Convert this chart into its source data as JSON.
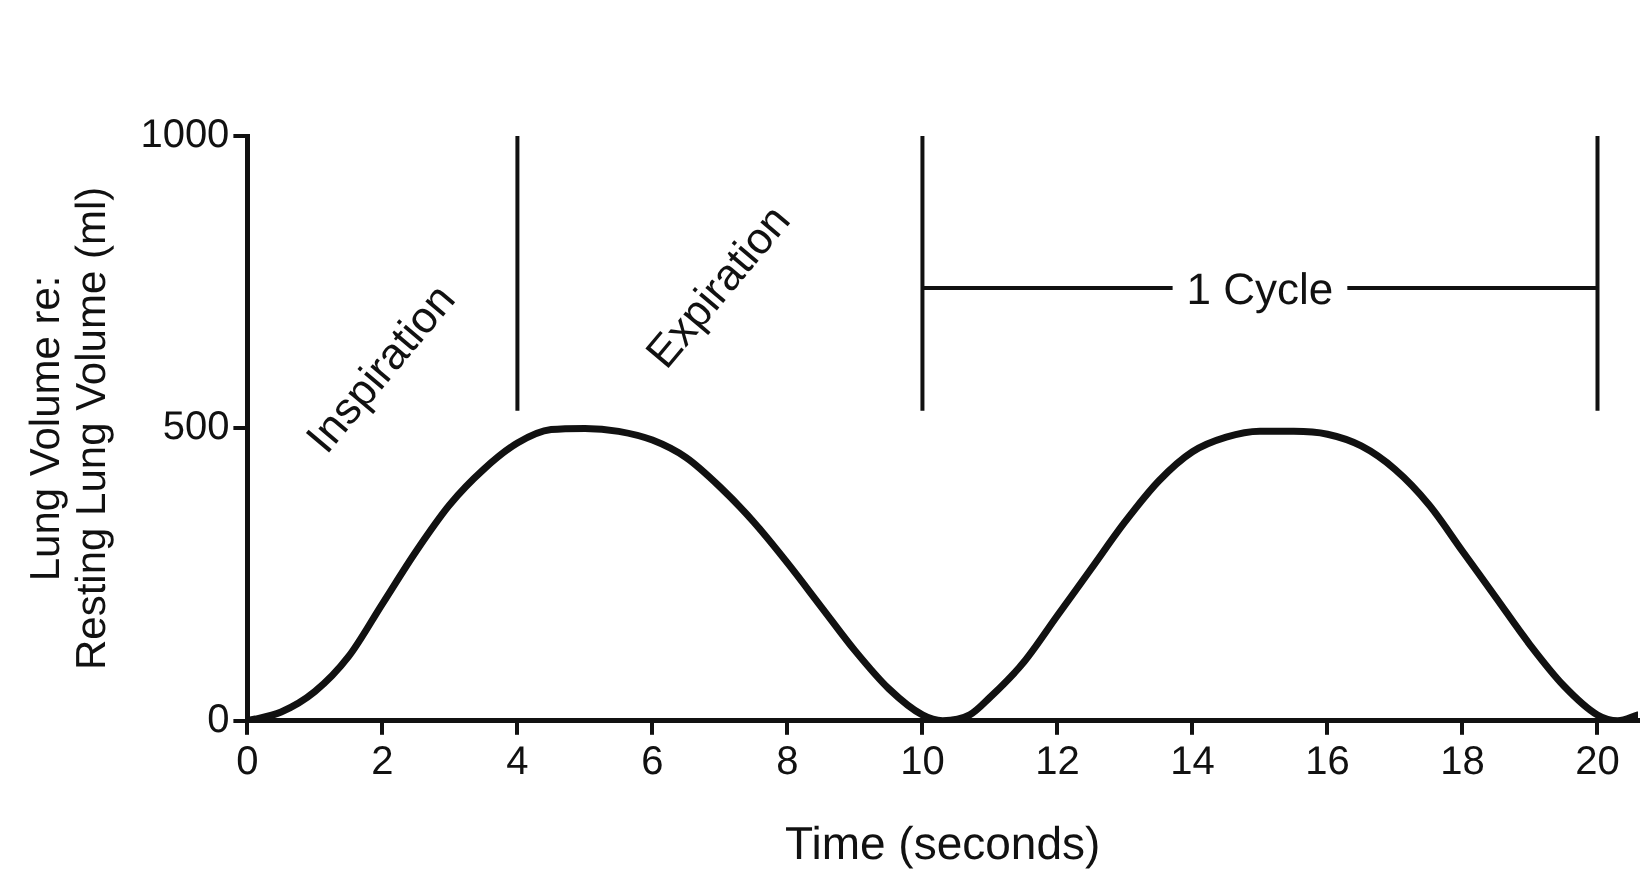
{
  "chart_data": {
    "type": "line",
    "xlabel": "Time (seconds)",
    "ylabel": "Lung Volume re:\nResting Lung Volume (ml)",
    "x": [
      0,
      0.5,
      1,
      1.5,
      2,
      2.5,
      3,
      3.5,
      4,
      4.5,
      5,
      5.5,
      6,
      6.5,
      7,
      7.5,
      8,
      8.5,
      9,
      9.5,
      10,
      10.3,
      10.7,
      11,
      11.5,
      12,
      12.5,
      13,
      13.5,
      14,
      14.5,
      15,
      15.5,
      16,
      16.5,
      17,
      17.5,
      18,
      18.5,
      19,
      19.5,
      20,
      20.3,
      20.6
    ],
    "series": [
      {
        "color": "#111111",
        "values": [
          0,
          15,
          50,
          110,
          200,
          290,
          370,
          430,
          475,
          498,
          500,
          495,
          480,
          450,
          400,
          340,
          270,
          195,
          120,
          55,
          10,
          0,
          10,
          40,
          100,
          180,
          260,
          340,
          410,
          460,
          485,
          495,
          495,
          490,
          470,
          430,
          370,
          290,
          210,
          130,
          60,
          10,
          0,
          10
        ]
      }
    ],
    "xlim": [
      0,
      20.6
    ],
    "xticks": [
      0,
      2,
      4,
      6,
      8,
      10,
      12,
      14,
      16,
      18,
      20
    ],
    "ylim": [
      0,
      1000
    ],
    "yticks": [
      0,
      500,
      1000
    ],
    "grid": false,
    "legend": false,
    "marker": "none",
    "line_style": "solid",
    "ref_lines": [
      {
        "axis": "x",
        "value": 4
      },
      {
        "axis": "x",
        "value": 10
      },
      {
        "axis": "x",
        "value": 20
      }
    ],
    "annotations": [
      "Inspiration",
      "Expiration",
      {
        "text": "1 Cycle",
        "x": 10,
        "y": 740
      }
    ]
  }
}
